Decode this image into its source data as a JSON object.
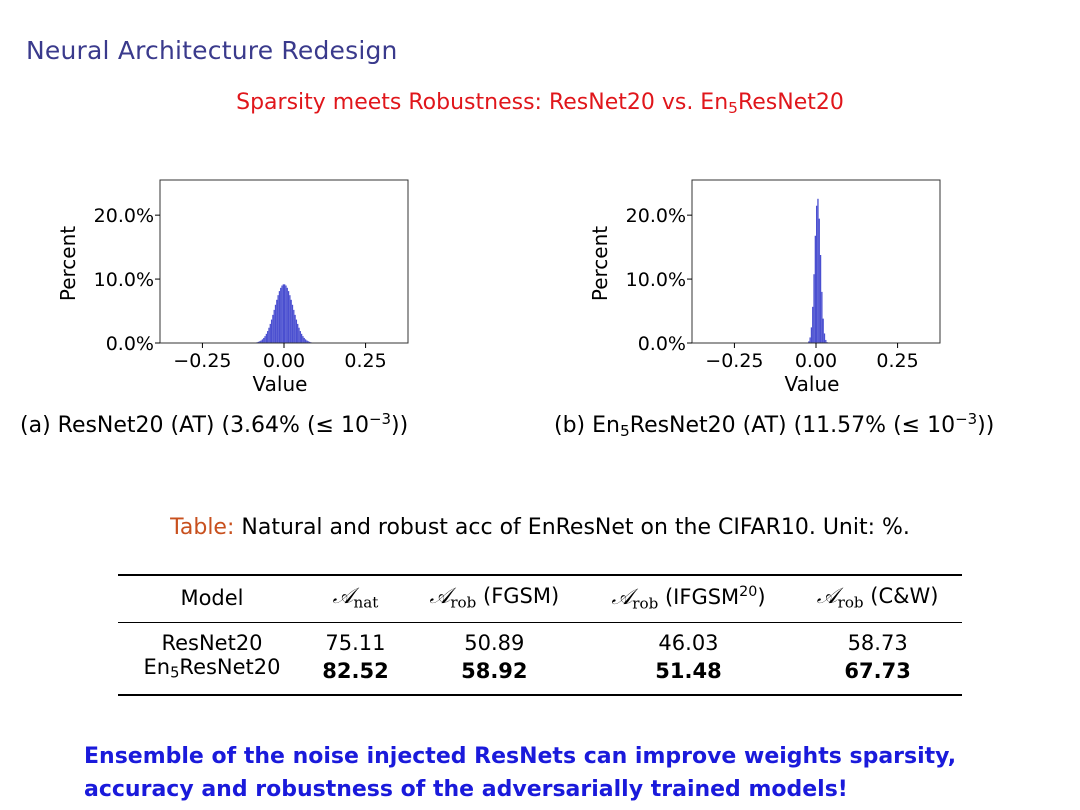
{
  "slide": {
    "title": "Neural Architecture Redesign",
    "subtitle": {
      "prefix": "Sparsity meets Robustness: ResNet20 vs. En",
      "sub": "5",
      "suffix": "ResNet20"
    }
  },
  "chart_data": [
    {
      "type": "bar",
      "title": "",
      "xlabel": "Value",
      "ylabel": "Percent",
      "xlim": [
        -0.38,
        0.38
      ],
      "ylim": [
        0,
        0.255
      ],
      "xticks": [
        -0.25,
        0.0,
        0.25
      ],
      "xtick_labels": [
        "−0.25",
        "0.00",
        "0.25"
      ],
      "yticks": [
        0.0,
        0.1,
        0.2
      ],
      "ytick_labels": [
        "0.0%",
        "10.0%",
        "20.0%"
      ],
      "distribution": {
        "center": 0.0,
        "peak_percent": 9.2,
        "spread": 0.028
      },
      "caption": {
        "label": "(a) ResNet20 (AT) (3.64% (≤ 10",
        "exponent": "−3",
        "close": "))"
      }
    },
    {
      "type": "bar",
      "title": "",
      "xlabel": "Value",
      "ylabel": "Percent",
      "xlim": [
        -0.38,
        0.38
      ],
      "ylim": [
        0,
        0.255
      ],
      "xticks": [
        -0.25,
        0.0,
        0.25
      ],
      "xtick_labels": [
        "−0.25",
        "0.00",
        "0.25"
      ],
      "yticks": [
        0.0,
        0.1,
        0.2
      ],
      "ytick_labels": [
        "0.0%",
        "10.0%",
        "20.0%"
      ],
      "distribution": {
        "center": 0.005,
        "peak_percent": 22.7,
        "spread": 0.009
      },
      "caption": {
        "label_prefix": "(b) En",
        "label_sub": "5",
        "label": "ResNet20 (AT) (11.57% (≤ 10",
        "exponent": "−3",
        "close": "))"
      }
    }
  ],
  "table": {
    "caption_label": "Table:",
    "caption_text": "Natural and robust acc of EnResNet on the CIFAR10. Unit: %.",
    "headers": {
      "model": "Model",
      "math_symbol": "𝒜",
      "nat_sub": "nat",
      "rob_sub": "rob",
      "fgsm": "(FGSM)",
      "ifgsm": "(IFGSM",
      "ifgsm_sup": "20",
      "ifgsm_close": ")",
      "cw": "(C&W)"
    },
    "rows": [
      {
        "model": "ResNet20",
        "model_prefix": "",
        "model_sub": "",
        "nat": "75.11",
        "fgsm": "50.89",
        "ifgsm": "46.03",
        "cw": "58.73"
      },
      {
        "model": "ResNet20",
        "model_prefix": "En",
        "model_sub": "5",
        "nat": "82.52",
        "fgsm": "58.92",
        "ifgsm": "51.48",
        "cw": "67.73"
      }
    ]
  },
  "conclusion": {
    "line1": "Ensemble of the noise injected ResNets can improve weights sparsity,",
    "line2": "accuracy and robustness of the adversarially trained models!"
  },
  "colors": {
    "title": "#3a3a8c",
    "subtitle": "#e0161b",
    "bars": "#4a4fd0",
    "table_label": "#c8501e",
    "conclusion": "#1a1adb"
  }
}
